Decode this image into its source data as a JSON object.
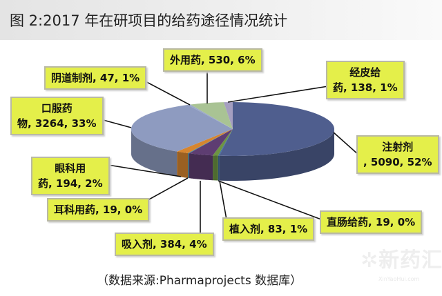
{
  "title": "图 2:2017 年在研项目的给药途径情况统计",
  "source": "（数据来源:Pharmaprojects 数据库）",
  "watermark": {
    "text": "新药汇",
    "sub": "XinYaoHui.com"
  },
  "chart_data": {
    "type": "pie",
    "style": "3d",
    "title": "图 2:2017 年在研项目的给药途径情况统计",
    "slices": [
      {
        "name": "注射剂",
        "value": 5090,
        "percent": 52,
        "color": "#4f5e8e"
      },
      {
        "name": "直肠给药",
        "value": 19,
        "percent": 0,
        "color": "#3f6fa0"
      },
      {
        "name": "植入剂",
        "value": 83,
        "percent": 1,
        "color": "#6d9443"
      },
      {
        "name": "吸入剂",
        "value": 384,
        "percent": 4,
        "color": "#5e3d72"
      },
      {
        "name": "耳科用药",
        "value": 19,
        "percent": 0,
        "color": "#3b8aa0"
      },
      {
        "name": "眼科用药",
        "value": 194,
        "percent": 2,
        "color": "#d6852f"
      },
      {
        "name": "口服药物",
        "value": 3264,
        "percent": 33,
        "color": "#8e9bc0"
      },
      {
        "name": "阴道制剂",
        "value": 47,
        "percent": 1,
        "color": "#9aa8c8"
      },
      {
        "name": "外用药",
        "value": 530,
        "percent": 6,
        "color": "#a9c394"
      },
      {
        "name": "经皮给药",
        "value": 138,
        "percent": 1,
        "color": "#a59fc0"
      }
    ],
    "legend": "none",
    "data_labels": "name, value, percent"
  }
}
